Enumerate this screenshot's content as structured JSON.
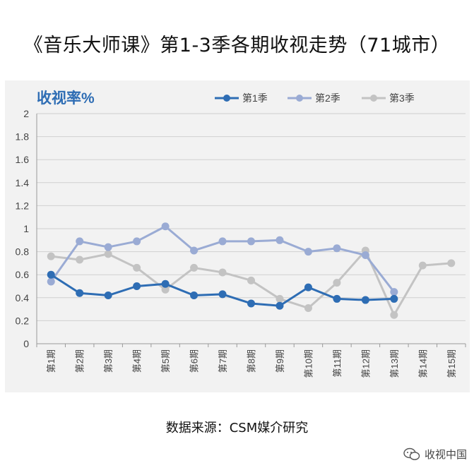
{
  "title": "《音乐大师课》第1-3季各期收视走势（71城市）",
  "source_note": "数据来源：CSM媒介研究",
  "watermark": {
    "text": "收视中国",
    "icon": "wechat-icon"
  },
  "chart_data": {
    "type": "line",
    "ylabel": "收视率%",
    "ylim": [
      0,
      2
    ],
    "yticks": [
      0,
      0.2,
      0.4,
      0.6,
      0.8,
      1,
      1.2,
      1.4,
      1.6,
      1.8,
      2
    ],
    "ytick_labels": [
      "0",
      "0.2",
      "0.4",
      "0.6",
      "0.8",
      "1",
      "1.2",
      "1.4",
      "1.6",
      "1.8",
      "2"
    ],
    "categories": [
      "第1期",
      "第2期",
      "第3期",
      "第4期",
      "第5期",
      "第6期",
      "第7期",
      "第8期",
      "第9期",
      "第10期",
      "第11期",
      "第12期",
      "第13期",
      "第14期",
      "第15期"
    ],
    "grid": true,
    "legend_position": "top",
    "series": [
      {
        "name": "第1季",
        "color": "#2e6db4",
        "values": [
          0.6,
          0.44,
          0.42,
          0.5,
          0.52,
          0.42,
          0.43,
          0.35,
          0.33,
          0.49,
          0.39,
          0.38,
          0.39,
          null,
          null
        ]
      },
      {
        "name": "第2季",
        "color": "#9aabd4",
        "values": [
          0.54,
          0.89,
          0.84,
          0.89,
          1.02,
          0.81,
          0.89,
          0.89,
          0.9,
          0.8,
          0.83,
          0.77,
          0.45,
          null,
          null
        ]
      },
      {
        "name": "第3季",
        "color": "#c3c3c3",
        "values": [
          0.76,
          0.73,
          0.78,
          0.66,
          0.47,
          0.66,
          0.62,
          0.55,
          0.39,
          0.31,
          0.53,
          0.81,
          0.25,
          0.68,
          0.7
        ]
      }
    ]
  }
}
